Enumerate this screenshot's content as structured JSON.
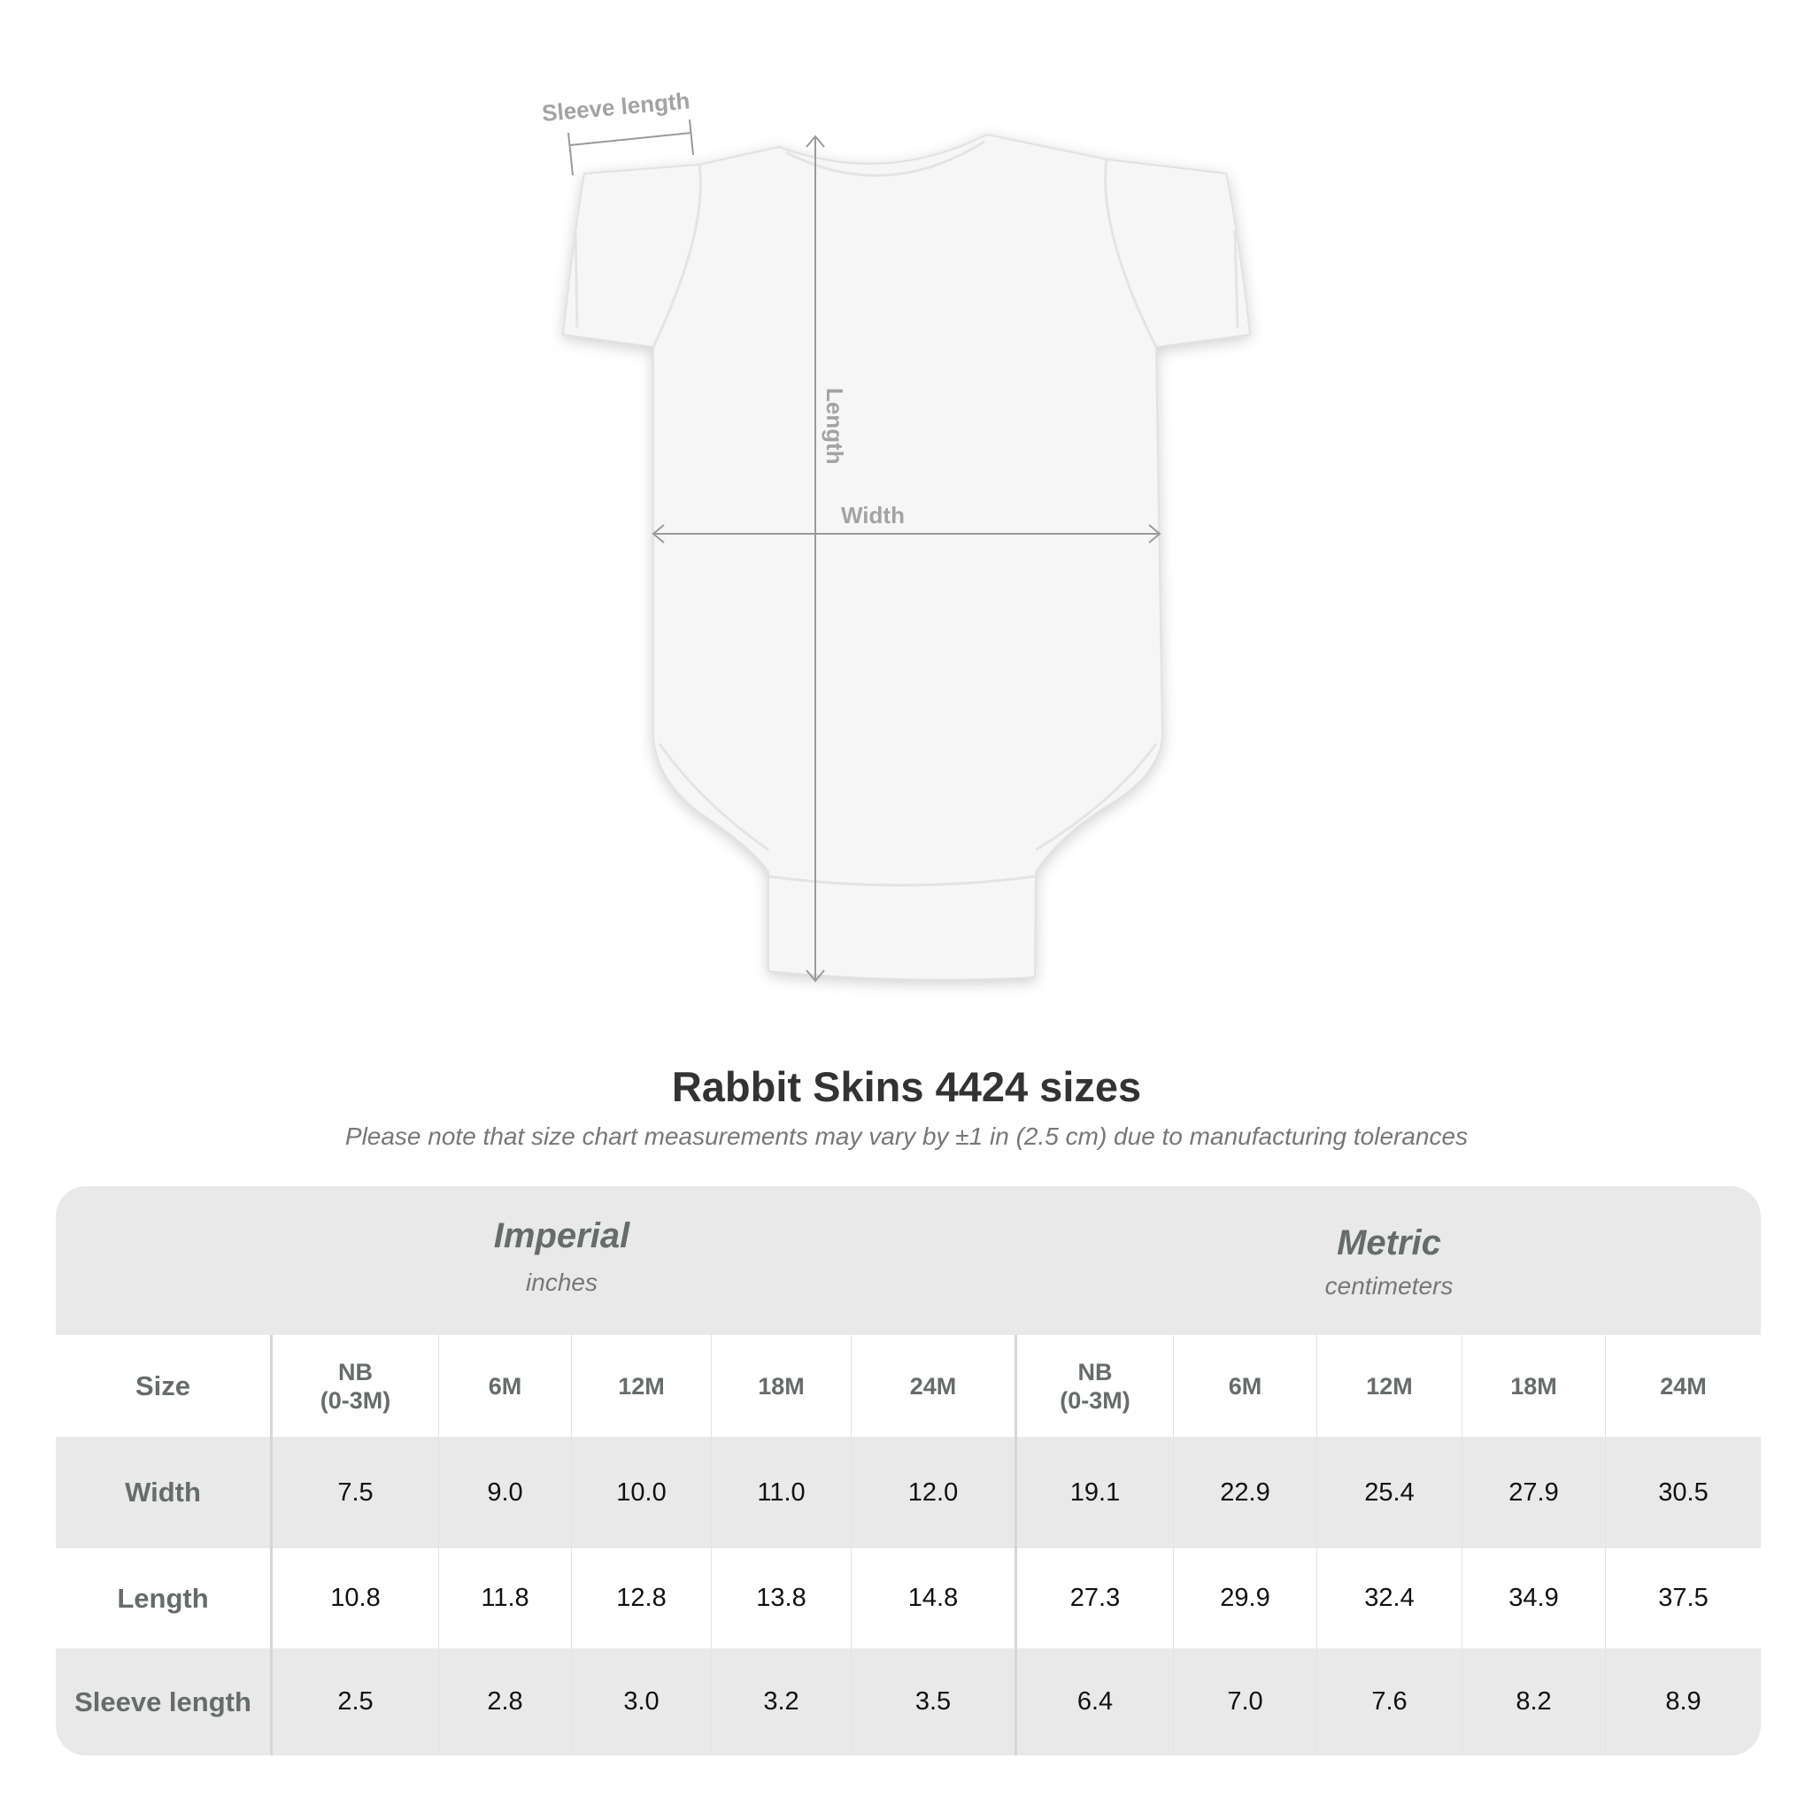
{
  "diagram": {
    "sleeve_label": "Sleeve length",
    "length_label": "Length",
    "width_label": "Width"
  },
  "title": "Rabbit Skins 4424 sizes",
  "subtitle": "Please note that size chart measurements may vary by ±1 in (2.5 cm) due to manufacturing tolerances",
  "table": {
    "imperial": {
      "name": "Imperial",
      "unit": "inches"
    },
    "metric": {
      "name": "Metric",
      "unit": "centimeters"
    },
    "size_label": "Size",
    "sizes": [
      "NB\n(0-3M)",
      "6M",
      "12M",
      "18M",
      "24M"
    ],
    "rows": [
      {
        "label": "Width",
        "imperial": [
          "7.5",
          "9.0",
          "10.0",
          "11.0",
          "12.0"
        ],
        "metric": [
          "19.1",
          "22.9",
          "25.4",
          "27.9",
          "30.5"
        ]
      },
      {
        "label": "Length",
        "imperial": [
          "10.8",
          "11.8",
          "12.8",
          "13.8",
          "14.8"
        ],
        "metric": [
          "27.3",
          "29.9",
          "32.4",
          "34.9",
          "37.5"
        ]
      },
      {
        "label": "Sleeve length",
        "imperial": [
          "2.5",
          "2.8",
          "3.0",
          "3.2",
          "3.5"
        ],
        "metric": [
          "6.4",
          "7.0",
          "7.6",
          "8.2",
          "8.9"
        ]
      }
    ]
  },
  "colors": {
    "header_bg": "#e9e9e9",
    "label_text": "#666c6c",
    "title_text": "#333333"
  }
}
